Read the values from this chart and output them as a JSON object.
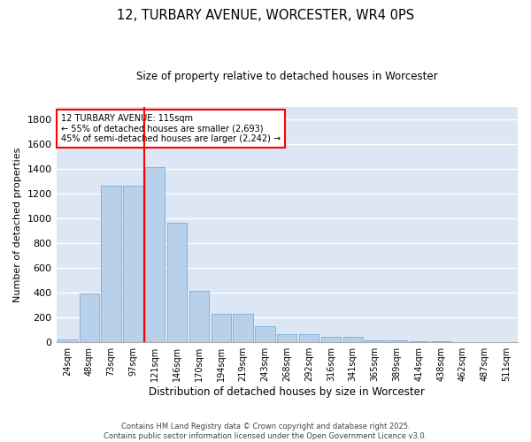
{
  "title": "12, TURBARY AVENUE, WORCESTER, WR4 0PS",
  "subtitle": "Size of property relative to detached houses in Worcester",
  "xlabel": "Distribution of detached houses by size in Worcester",
  "ylabel": "Number of detached properties",
  "categories": [
    "24sqm",
    "48sqm",
    "73sqm",
    "97sqm",
    "121sqm",
    "146sqm",
    "170sqm",
    "194sqm",
    "219sqm",
    "243sqm",
    "268sqm",
    "292sqm",
    "316sqm",
    "341sqm",
    "365sqm",
    "389sqm",
    "414sqm",
    "438sqm",
    "462sqm",
    "487sqm",
    "511sqm"
  ],
  "values": [
    25,
    395,
    1265,
    1265,
    1410,
    965,
    415,
    232,
    232,
    128,
    65,
    65,
    45,
    45,
    18,
    18,
    10,
    10,
    5,
    2,
    2
  ],
  "bar_color": "#b8d0ea",
  "bar_edgecolor": "#7aafd4",
  "bg_color": "#dce6f5",
  "grid_color": "#ffffff",
  "vline_x_index": 3.5,
  "vline_color": "red",
  "annotation_text": "12 TURBARY AVENUE: 115sqm\n← 55% of detached houses are smaller (2,693)\n45% of semi-detached houses are larger (2,242) →",
  "annotation_box_color": "red",
  "footnote": "Contains HM Land Registry data © Crown copyright and database right 2025.\nContains public sector information licensed under the Open Government Licence v3.0.",
  "ylim": [
    0,
    1900
  ],
  "yticks": [
    0,
    200,
    400,
    600,
    800,
    1000,
    1200,
    1400,
    1600,
    1800
  ]
}
